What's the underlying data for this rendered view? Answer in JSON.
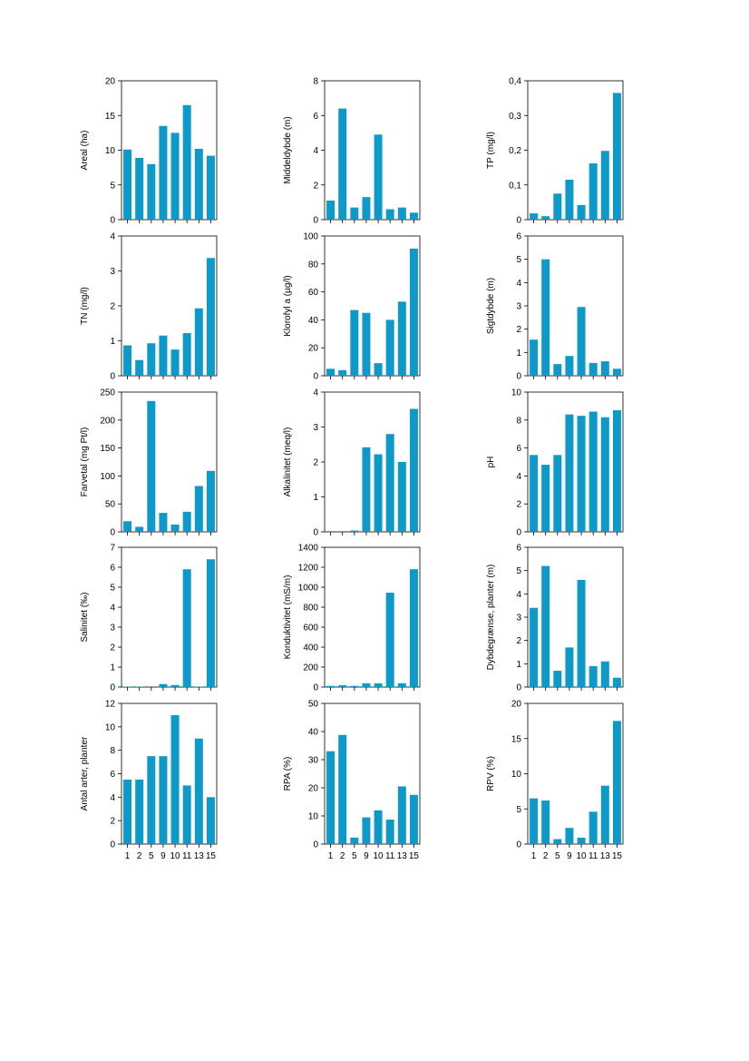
{
  "colors": {
    "bar": "#0e9ac8",
    "axis": "#000000"
  },
  "chart_data": [
    {
      "type": "bar",
      "ylabel": "Areal (ha)",
      "ylim": [
        0,
        20
      ],
      "yticks": [
        0,
        5,
        10,
        15,
        20
      ],
      "ytick_labels": [
        "0",
        "5",
        "10",
        "15",
        "20"
      ],
      "categories": [
        "1",
        "2",
        "5",
        "9",
        "10",
        "11",
        "13",
        "15"
      ],
      "values": [
        10.1,
        8.9,
        8.0,
        13.5,
        12.5,
        16.5,
        10.2,
        9.2
      ]
    },
    {
      "type": "bar",
      "ylabel": "Middeldybde (m)",
      "ylim": [
        0,
        8
      ],
      "yticks": [
        0,
        2,
        4,
        6,
        8
      ],
      "ytick_labels": [
        "0",
        "2",
        "4",
        "6",
        "8"
      ],
      "categories": [
        "1",
        "2",
        "5",
        "9",
        "10",
        "11",
        "13",
        "15"
      ],
      "values": [
        1.1,
        6.4,
        0.7,
        1.3,
        4.9,
        0.6,
        0.7,
        0.4
      ]
    },
    {
      "type": "bar",
      "ylabel": "TP (mg/l)",
      "ylim": [
        0,
        0.4
      ],
      "yticks": [
        0,
        0.1,
        0.2,
        0.3,
        0.4
      ],
      "ytick_labels": [
        "0",
        "0,1",
        "0,2",
        "0,3",
        "0,4"
      ],
      "categories": [
        "1",
        "2",
        "5",
        "9",
        "10",
        "11",
        "13",
        "15"
      ],
      "values": [
        0.018,
        0.01,
        0.075,
        0.115,
        0.042,
        0.162,
        0.198,
        0.365
      ]
    },
    {
      "type": "bar",
      "ylabel": "TN (mg/l)",
      "ylim": [
        0,
        4
      ],
      "yticks": [
        0,
        1,
        2,
        3,
        4
      ],
      "ytick_labels": [
        "0",
        "1",
        "2",
        "3",
        "4"
      ],
      "categories": [
        "1",
        "2",
        "5",
        "9",
        "10",
        "11",
        "13",
        "15"
      ],
      "values": [
        0.87,
        0.45,
        0.93,
        1.15,
        0.75,
        1.22,
        1.93,
        3.37
      ]
    },
    {
      "type": "bar",
      "ylabel": "Klorofyl a (µg/l)",
      "ylim": [
        0,
        100
      ],
      "yticks": [
        0,
        20,
        40,
        60,
        80,
        100
      ],
      "ytick_labels": [
        "0",
        "20",
        "40",
        "60",
        "80",
        "100"
      ],
      "categories": [
        "1",
        "2",
        "5",
        "9",
        "10",
        "11",
        "13",
        "15"
      ],
      "values": [
        5,
        4,
        47,
        45,
        9,
        40,
        53,
        91
      ]
    },
    {
      "type": "bar",
      "ylabel": "Sigtdybde (m)",
      "ylim": [
        0,
        6
      ],
      "yticks": [
        0,
        1,
        2,
        3,
        4,
        5,
        6
      ],
      "ytick_labels": [
        "0",
        "1",
        "2",
        "3",
        "4",
        "5",
        "6"
      ],
      "categories": [
        "1",
        "2",
        "5",
        "9",
        "10",
        "11",
        "13",
        "15"
      ],
      "values": [
        1.55,
        5.0,
        0.5,
        0.85,
        2.95,
        0.55,
        0.62,
        0.3
      ]
    },
    {
      "type": "bar",
      "ylabel": "Farvetal (mg Pt/l)",
      "ylim": [
        0,
        250
      ],
      "yticks": [
        0,
        50,
        100,
        150,
        200,
        250
      ],
      "ytick_labels": [
        "0",
        "50",
        "100",
        "150",
        "200",
        "250"
      ],
      "categories": [
        "1",
        "2",
        "5",
        "9",
        "10",
        "11",
        "13",
        "15"
      ],
      "values": [
        19,
        9,
        234,
        34,
        13,
        36,
        82,
        109
      ]
    },
    {
      "type": "bar",
      "ylabel": "Alkalinitet (meq/l)",
      "ylim": [
        0,
        4
      ],
      "yticks": [
        0,
        1,
        2,
        3,
        4
      ],
      "ytick_labels": [
        "0",
        "1",
        "2",
        "3",
        "4"
      ],
      "categories": [
        "1",
        "2",
        "5",
        "9",
        "10",
        "11",
        "13",
        "15"
      ],
      "values": [
        0.02,
        0.02,
        0.04,
        2.42,
        2.22,
        2.8,
        2.0,
        3.52
      ]
    },
    {
      "type": "bar",
      "ylabel": "pH",
      "ylim": [
        0,
        10
      ],
      "yticks": [
        0,
        2,
        4,
        6,
        8,
        10
      ],
      "ytick_labels": [
        "0",
        "2",
        "4",
        "6",
        "8",
        "10"
      ],
      "categories": [
        "1",
        "2",
        "5",
        "9",
        "10",
        "11",
        "13",
        "15"
      ],
      "values": [
        5.5,
        4.8,
        5.5,
        8.4,
        8.3,
        8.6,
        8.2,
        8.7
      ]
    },
    {
      "type": "bar",
      "ylabel": "Salinitet (‰)",
      "ylim": [
        0,
        7
      ],
      "yticks": [
        0,
        1,
        2,
        3,
        4,
        5,
        6,
        7
      ],
      "ytick_labels": [
        "0",
        "1",
        "2",
        "3",
        "4",
        "5",
        "6",
        "7"
      ],
      "categories": [
        "1",
        "2",
        "5",
        "9",
        "10",
        "11",
        "13",
        "15"
      ],
      "values": [
        0.02,
        0.02,
        0,
        0.15,
        0.1,
        5.9,
        0.02,
        6.4
      ]
    },
    {
      "type": "bar",
      "ylabel": "Konduktivitet (mS/m)",
      "ylim": [
        0,
        1400
      ],
      "yticks": [
        0,
        200,
        400,
        600,
        800,
        1000,
        1200,
        1400
      ],
      "ytick_labels": [
        "0",
        "200",
        "400",
        "600",
        "800",
        "1000",
        "1200",
        "1400"
      ],
      "categories": [
        "1",
        "2",
        "5",
        "9",
        "10",
        "11",
        "13",
        "15"
      ],
      "values": [
        12,
        18,
        12,
        38,
        38,
        945,
        38,
        1180
      ]
    },
    {
      "type": "bar",
      "ylabel": "Dybdegrænse, planter (m)",
      "ylim": [
        0,
        6
      ],
      "yticks": [
        0,
        1,
        2,
        3,
        4,
        5,
        6
      ],
      "ytick_labels": [
        "0",
        "1",
        "2",
        "3",
        "4",
        "5",
        "6"
      ],
      "categories": [
        "1",
        "2",
        "5",
        "9",
        "10",
        "11",
        "13",
        "15"
      ],
      "values": [
        3.4,
        5.2,
        0.7,
        1.7,
        4.6,
        0.9,
        1.1,
        0.4
      ]
    },
    {
      "type": "bar",
      "ylabel": "Antal arter, planter",
      "ylim": [
        0,
        12
      ],
      "yticks": [
        0,
        2,
        4,
        6,
        8,
        10,
        12
      ],
      "ytick_labels": [
        "0",
        "2",
        "4",
        "6",
        "8",
        "10",
        "12"
      ],
      "categories": [
        "1",
        "2",
        "5",
        "9",
        "10",
        "11",
        "13",
        "15"
      ],
      "values": [
        5.5,
        5.5,
        7.5,
        7.5,
        11,
        5,
        9,
        4
      ]
    },
    {
      "type": "bar",
      "ylabel": "RPA (%)",
      "ylim": [
        0,
        50
      ],
      "yticks": [
        0,
        10,
        20,
        30,
        40,
        50
      ],
      "ytick_labels": [
        "0",
        "10",
        "20",
        "30",
        "40",
        "50"
      ],
      "categories": [
        "1",
        "2",
        "5",
        "9",
        "10",
        "11",
        "13",
        "15"
      ],
      "values": [
        33,
        38.8,
        2.3,
        9.5,
        12,
        8.7,
        20.5,
        17.5
      ]
    },
    {
      "type": "bar",
      "ylabel": "RPV (%)",
      "ylim": [
        0,
        20
      ],
      "yticks": [
        0,
        5,
        10,
        15,
        20
      ],
      "ytick_labels": [
        "0",
        "5",
        "10",
        "15",
        "20"
      ],
      "categories": [
        "1",
        "2",
        "5",
        "9",
        "10",
        "11",
        "13",
        "15"
      ],
      "values": [
        6.5,
        6.2,
        0.7,
        2.3,
        0.9,
        4.6,
        8.3,
        17.5
      ]
    }
  ]
}
